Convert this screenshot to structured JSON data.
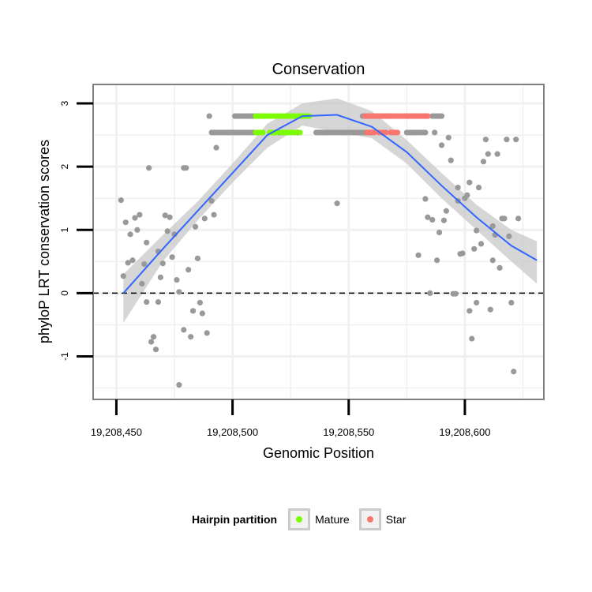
{
  "chart_data": {
    "type": "scatter",
    "title": "Conservation",
    "xlabel": "Genomic Position",
    "ylabel": "phyloP LRT conservation scores",
    "xlim": [
      19208440,
      19208634
    ],
    "ylim": [
      -1.68,
      3.3
    ],
    "x_ticks": [
      19208450,
      19208500,
      19208550,
      19208600
    ],
    "x_tick_labels": [
      "19,208,450",
      "19,208,500",
      "19,208,550",
      "19,208,600"
    ],
    "y_ticks": [
      -1,
      0,
      1,
      2,
      3
    ],
    "y_tick_labels": [
      "-1",
      "0",
      "1",
      "2",
      "3"
    ],
    "reference_line": {
      "y": 0,
      "style": "dashed"
    },
    "colors": {
      "Other": "#999999",
      "Mature": "#7cfc00",
      "Star": "#f8766d",
      "smooth_line": "#3366ff",
      "confidence_band": "#c8c8c8",
      "panel_background": "#ffffff",
      "grid": "#f0f0f0"
    },
    "series": [
      {
        "name": "Other",
        "points": [
          [
            19208452,
            1.47
          ],
          [
            19208453,
            0.27
          ],
          [
            19208454,
            1.12
          ],
          [
            19208455,
            0.48
          ],
          [
            19208456,
            0.93
          ],
          [
            19208457,
            0.52
          ],
          [
            19208458,
            1.19
          ],
          [
            19208459,
            1.0
          ],
          [
            19208460,
            1.24
          ],
          [
            19208461,
            0.15
          ],
          [
            19208462,
            0.46
          ],
          [
            19208463,
            -0.14
          ],
          [
            19208463,
            0.8
          ],
          [
            19208464,
            1.98
          ],
          [
            19208465,
            -0.77
          ],
          [
            19208466,
            -0.69
          ],
          [
            19208467,
            -0.89
          ],
          [
            19208468,
            -0.14
          ],
          [
            19208468,
            0.66
          ],
          [
            19208469,
            0.25
          ],
          [
            19208470,
            0.47
          ],
          [
            19208471,
            1.23
          ],
          [
            19208472,
            0.98
          ],
          [
            19208473,
            1.2
          ],
          [
            19208474,
            0.57
          ],
          [
            19208475,
            0.93
          ],
          [
            19208476,
            0.21
          ],
          [
            19208477,
            0.02
          ],
          [
            19208477,
            -1.45
          ],
          [
            19208479,
            1.98
          ],
          [
            19208479,
            -0.58
          ],
          [
            19208480,
            1.98
          ],
          [
            19208481,
            0.37
          ],
          [
            19208482,
            -0.69
          ],
          [
            19208483,
            -0.28
          ],
          [
            19208484,
            1.05
          ],
          [
            19208485,
            0.55
          ],
          [
            19208486,
            -0.15
          ],
          [
            19208487,
            -0.32
          ],
          [
            19208488,
            1.18
          ],
          [
            19208489,
            -0.63
          ],
          [
            19208490,
            2.8
          ],
          [
            19208491,
            1.46
          ],
          [
            19208492,
            1.24
          ],
          [
            19208493,
            2.3
          ],
          [
            19208545,
            1.42
          ],
          [
            19208580,
            0.6
          ],
          [
            19208583,
            1.49
          ],
          [
            19208584,
            1.2
          ],
          [
            19208585,
            0.0
          ],
          [
            19208586,
            1.16
          ],
          [
            19208587,
            2.54
          ],
          [
            19208588,
            0.52
          ],
          [
            19208589,
            0.96
          ],
          [
            19208590,
            2.34
          ],
          [
            19208591,
            1.15
          ],
          [
            19208592,
            1.3
          ],
          [
            19208593,
            2.46
          ],
          [
            19208594,
            2.1
          ],
          [
            19208595,
            -0.01
          ],
          [
            19208596,
            -0.01
          ],
          [
            19208597,
            1.46
          ],
          [
            19208597,
            1.67
          ],
          [
            19208598,
            0.62
          ],
          [
            19208599,
            0.63
          ],
          [
            19208600,
            1.5
          ],
          [
            19208601,
            1.55
          ],
          [
            19208602,
            1.75
          ],
          [
            19208602,
            -0.28
          ],
          [
            19208603,
            -0.72
          ],
          [
            19208604,
            0.7
          ],
          [
            19208605,
            0.99
          ],
          [
            19208605,
            -0.15
          ],
          [
            19208606,
            1.67
          ],
          [
            19208607,
            0.78
          ],
          [
            19208608,
            2.08
          ],
          [
            19208609,
            2.43
          ],
          [
            19208610,
            2.2
          ],
          [
            19208611,
            -0.26
          ],
          [
            19208612,
            1.06
          ],
          [
            19208612,
            0.52
          ],
          [
            19208613,
            0.92
          ],
          [
            19208614,
            2.2
          ],
          [
            19208615,
            0.4
          ],
          [
            19208616,
            1.18
          ],
          [
            19208617,
            1.18
          ],
          [
            19208618,
            2.43
          ],
          [
            19208619,
            0.9
          ],
          [
            19208620,
            -0.15
          ],
          [
            19208621,
            -1.24
          ],
          [
            19208622,
            2.43
          ],
          [
            19208623,
            1.18
          ],
          [
            19208491,
            2.54
          ],
          [
            19208492,
            2.54
          ],
          [
            19208493,
            2.54
          ],
          [
            19208494,
            2.54
          ],
          [
            19208495,
            2.54
          ],
          [
            19208496,
            2.54
          ],
          [
            19208497,
            2.54
          ],
          [
            19208498,
            2.54
          ],
          [
            19208499,
            2.54
          ],
          [
            19208500,
            2.54
          ],
          [
            19208501,
            2.54
          ],
          [
            19208502,
            2.54
          ],
          [
            19208503,
            2.54
          ],
          [
            19208504,
            2.54
          ],
          [
            19208505,
            2.54
          ],
          [
            19208506,
            2.54
          ],
          [
            19208507,
            2.54
          ],
          [
            19208508,
            2.54
          ],
          [
            19208509,
            2.54
          ],
          [
            19208501,
            2.8
          ],
          [
            19208502,
            2.8
          ],
          [
            19208503,
            2.8
          ],
          [
            19208504,
            2.8
          ],
          [
            19208505,
            2.8
          ],
          [
            19208506,
            2.8
          ],
          [
            19208507,
            2.8
          ],
          [
            19208508,
            2.8
          ],
          [
            19208509,
            2.8
          ],
          [
            19208510,
            2.8
          ],
          [
            19208511,
            2.8
          ],
          [
            19208512,
            2.8
          ],
          [
            19208513,
            2.8
          ],
          [
            19208520,
            2.54
          ],
          [
            19208528,
            2.54
          ],
          [
            19208536,
            2.54
          ],
          [
            19208537,
            2.54
          ],
          [
            19208538,
            2.54
          ],
          [
            19208539,
            2.54
          ],
          [
            19208540,
            2.54
          ],
          [
            19208541,
            2.54
          ],
          [
            19208542,
            2.54
          ],
          [
            19208543,
            2.54
          ],
          [
            19208544,
            2.54
          ],
          [
            19208545,
            2.54
          ],
          [
            19208546,
            2.54
          ],
          [
            19208547,
            2.54
          ],
          [
            19208548,
            2.54
          ],
          [
            19208549,
            2.54
          ],
          [
            19208550,
            2.54
          ],
          [
            19208551,
            2.54
          ],
          [
            19208552,
            2.54
          ],
          [
            19208553,
            2.54
          ],
          [
            19208554,
            2.54
          ],
          [
            19208555,
            2.54
          ],
          [
            19208556,
            2.54
          ],
          [
            19208557,
            2.54
          ],
          [
            19208558,
            2.54
          ],
          [
            19208559,
            2.54
          ],
          [
            19208560,
            2.54
          ],
          [
            19208556,
            2.8
          ],
          [
            19208557,
            2.8
          ],
          [
            19208558,
            2.8
          ],
          [
            19208559,
            2.8
          ],
          [
            19208560,
            2.8
          ],
          [
            19208561,
            2.8
          ],
          [
            19208562,
            2.8
          ],
          [
            19208563,
            2.8
          ],
          [
            19208564,
            2.8
          ],
          [
            19208565,
            2.8
          ],
          [
            19208566,
            2.8
          ],
          [
            19208567,
            2.8
          ],
          [
            19208568,
            2.8
          ],
          [
            19208575,
            2.8
          ],
          [
            19208576,
            2.8
          ],
          [
            19208577,
            2.8
          ],
          [
            19208578,
            2.8
          ],
          [
            19208579,
            2.8
          ],
          [
            19208580,
            2.8
          ],
          [
            19208581,
            2.8
          ],
          [
            19208582,
            2.8
          ],
          [
            19208583,
            2.8
          ],
          [
            19208584,
            2.8
          ],
          [
            19208586,
            2.8
          ],
          [
            19208587,
            2.8
          ],
          [
            19208588,
            2.8
          ],
          [
            19208589,
            2.8
          ],
          [
            19208590,
            2.8
          ],
          [
            19208575,
            2.54
          ],
          [
            19208576,
            2.54
          ],
          [
            19208577,
            2.54
          ],
          [
            19208578,
            2.54
          ],
          [
            19208579,
            2.54
          ],
          [
            19208580,
            2.54
          ],
          [
            19208581,
            2.54
          ],
          [
            19208582,
            2.54
          ],
          [
            19208583,
            2.54
          ]
        ]
      },
      {
        "name": "Mature",
        "points": [
          [
            19208510,
            2.54
          ],
          [
            19208511,
            2.54
          ],
          [
            19208512,
            2.54
          ],
          [
            19208513,
            2.54
          ],
          [
            19208516,
            2.54
          ],
          [
            19208517,
            2.54
          ],
          [
            19208518,
            2.54
          ],
          [
            19208519,
            2.54
          ],
          [
            19208521,
            2.54
          ],
          [
            19208522,
            2.54
          ],
          [
            19208523,
            2.54
          ],
          [
            19208524,
            2.54
          ],
          [
            19208525,
            2.54
          ],
          [
            19208526,
            2.54
          ],
          [
            19208527,
            2.54
          ],
          [
            19208529,
            2.54
          ],
          [
            19208510,
            2.8
          ],
          [
            19208511,
            2.8
          ],
          [
            19208512,
            2.8
          ],
          [
            19208513,
            2.8
          ],
          [
            19208514,
            2.8
          ],
          [
            19208515,
            2.8
          ],
          [
            19208516,
            2.8
          ],
          [
            19208517,
            2.8
          ],
          [
            19208518,
            2.8
          ],
          [
            19208519,
            2.8
          ],
          [
            19208520,
            2.8
          ],
          [
            19208521,
            2.8
          ],
          [
            19208522,
            2.8
          ],
          [
            19208523,
            2.8
          ],
          [
            19208524,
            2.8
          ],
          [
            19208525,
            2.8
          ],
          [
            19208526,
            2.8
          ],
          [
            19208527,
            2.8
          ],
          [
            19208528,
            2.8
          ],
          [
            19208529,
            2.8
          ],
          [
            19208530,
            2.8
          ],
          [
            19208531,
            2.8
          ],
          [
            19208532,
            2.8
          ],
          [
            19208533,
            2.8
          ]
        ]
      },
      {
        "name": "Star",
        "points": [
          [
            19208558,
            2.54
          ],
          [
            19208559,
            2.54
          ],
          [
            19208560,
            2.54
          ],
          [
            19208561,
            2.54
          ],
          [
            19208563,
            2.54
          ],
          [
            19208564,
            2.54
          ],
          [
            19208565,
            2.54
          ],
          [
            19208566,
            2.54
          ],
          [
            19208568,
            2.54
          ],
          [
            19208569,
            2.54
          ],
          [
            19208570,
            2.54
          ],
          [
            19208571,
            2.54
          ],
          [
            19208557,
            2.8
          ],
          [
            19208558,
            2.8
          ],
          [
            19208559,
            2.8
          ],
          [
            19208560,
            2.8
          ],
          [
            19208561,
            2.8
          ],
          [
            19208562,
            2.8
          ],
          [
            19208563,
            2.8
          ],
          [
            19208564,
            2.8
          ],
          [
            19208565,
            2.8
          ],
          [
            19208566,
            2.8
          ],
          [
            19208567,
            2.8
          ],
          [
            19208568,
            2.8
          ],
          [
            19208569,
            2.8
          ],
          [
            19208570,
            2.8
          ],
          [
            19208571,
            2.8
          ],
          [
            19208572,
            2.8
          ],
          [
            19208573,
            2.8
          ],
          [
            19208574,
            2.8
          ],
          [
            19208575,
            2.8
          ],
          [
            19208576,
            2.8
          ],
          [
            19208577,
            2.8
          ],
          [
            19208578,
            2.8
          ],
          [
            19208579,
            2.8
          ],
          [
            19208580,
            2.8
          ],
          [
            19208581,
            2.8
          ],
          [
            19208582,
            2.8
          ],
          [
            19208583,
            2.8
          ],
          [
            19208584,
            2.8
          ]
        ]
      }
    ],
    "smooth": {
      "x": [
        19208453,
        19208470,
        19208485,
        19208500,
        19208515,
        19208530,
        19208545,
        19208560,
        19208575,
        19208590,
        19208605,
        19208620,
        19208631
      ],
      "y": [
        0.0,
        0.7,
        1.3,
        1.9,
        2.5,
        2.8,
        2.82,
        2.63,
        2.23,
        1.7,
        1.2,
        0.75,
        0.52
      ],
      "ymin": [
        -0.47,
        0.5,
        1.15,
        1.75,
        2.3,
        2.65,
        2.55,
        2.45,
        2.05,
        1.5,
        1.0,
        0.5,
        0.15
      ],
      "ymax": [
        0.3,
        0.92,
        1.45,
        2.05,
        2.68,
        3.0,
        3.08,
        2.88,
        2.42,
        1.9,
        1.4,
        1.0,
        0.82
      ]
    },
    "legend": {
      "title": "Hairpin partition",
      "position": "bottom",
      "items": [
        {
          "label": "Mature",
          "color": "#7cfc00"
        },
        {
          "label": "Star",
          "color": "#f8766d"
        }
      ]
    }
  }
}
